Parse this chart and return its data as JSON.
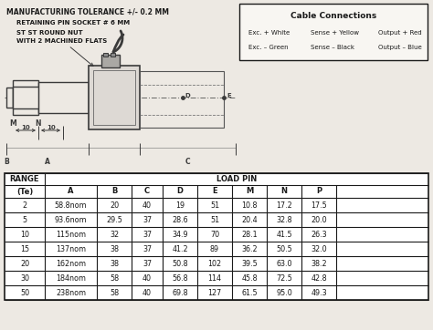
{
  "title_text": "MANUFACTURING TOLERANCE +/- 0.2 MM",
  "annotation1": "RETAINING PIN SOCKET # 6 MM",
  "annotation2": "ST ST ROUND NUT\nWITH 2 MACHINED FLATS",
  "cable_box_title": "Cable Connections",
  "cable_line1a": "Exc. + White",
  "cable_line1b": "Sense + Yellow",
  "cable_line1c": "Output + Red",
  "cable_line2a": "Exc. – Green",
  "cable_line2b": "Sense – Black",
  "cable_line2c": "Output – Blue",
  "col_headers": [
    "(Te)",
    "A",
    "B",
    "C",
    "D",
    "E",
    "M",
    "N",
    "P"
  ],
  "table_data": [
    [
      "2",
      "58.8nom",
      "20",
      "40",
      "19",
      "51",
      "10.8",
      "17.2",
      "17.5"
    ],
    [
      "5",
      "93.6nom",
      "29.5",
      "37",
      "28.6",
      "51",
      "20.4",
      "32.8",
      "20.0"
    ],
    [
      "10",
      "115nom",
      "32",
      "37",
      "34.9",
      "70",
      "28.1",
      "41.5",
      "26.3"
    ],
    [
      "15",
      "137nom",
      "38",
      "37",
      "41.2",
      "89",
      "36.2",
      "50.5",
      "32.0"
    ],
    [
      "20",
      "162nom",
      "38",
      "37",
      "50.8",
      "102",
      "39.5",
      "63.0",
      "38.2"
    ],
    [
      "30",
      "184nom",
      "58",
      "40",
      "56.8",
      "114",
      "45.8",
      "72.5",
      "42.8"
    ],
    [
      "50",
      "238nom",
      "58",
      "40",
      "69.8",
      "127",
      "61.5",
      "95.0",
      "49.3"
    ]
  ],
  "bg_color": "#ede9e3",
  "line_color": "#1a1a1a",
  "drawing_line_color": "#3a3a3a"
}
